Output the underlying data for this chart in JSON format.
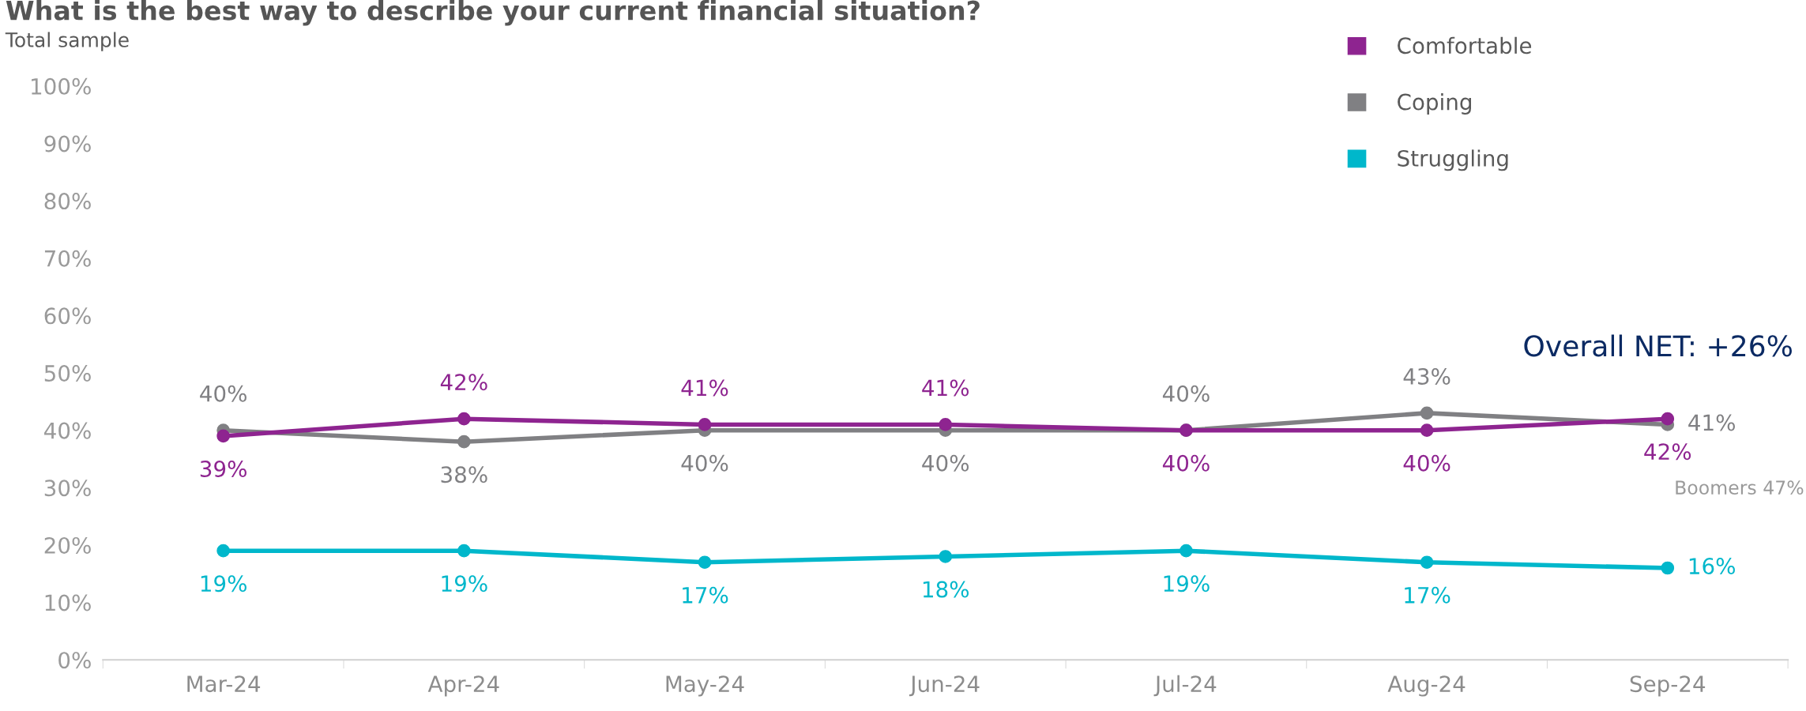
{
  "chart_data": {
    "type": "line",
    "title": "What is the best way to describe your current financial situation?",
    "subtitle": "Total sample",
    "categories": [
      "Mar-24",
      "Apr-24",
      "May-24",
      "Jun-24",
      "Jul-24",
      "Aug-24",
      "Sep-24"
    ],
    "series": [
      {
        "name": "Comfortable",
        "color": "#8e2490",
        "values": [
          39,
          42,
          41,
          41,
          40,
          40,
          42
        ],
        "value_labels": [
          "39%",
          "42%",
          "41%",
          "41%",
          "40%",
          "40%",
          "42%"
        ]
      },
      {
        "name": "Coping",
        "color": "#808083",
        "values": [
          40,
          38,
          40,
          40,
          40,
          43,
          41
        ],
        "value_labels": [
          "40%",
          "38%",
          "40%",
          "40%",
          "40%",
          "43%",
          "41%"
        ]
      },
      {
        "name": "Struggling",
        "color": "#00b7cb",
        "values": [
          19,
          19,
          17,
          18,
          19,
          17,
          16
        ],
        "value_labels": [
          "19%",
          "19%",
          "17%",
          "18%",
          "19%",
          "17%",
          "16%"
        ]
      }
    ],
    "ylim": [
      0,
      100
    ],
    "yticks": [
      {
        "value": 0,
        "label": "0%"
      },
      {
        "value": 10,
        "label": "10%"
      },
      {
        "value": 20,
        "label": "20%"
      },
      {
        "value": 30,
        "label": "30%"
      },
      {
        "value": 40,
        "label": "40%"
      },
      {
        "value": 50,
        "label": "50%"
      },
      {
        "value": 60,
        "label": "60%"
      },
      {
        "value": 70,
        "label": "70%"
      },
      {
        "value": 80,
        "label": "80%"
      },
      {
        "value": 90,
        "label": "90%"
      },
      {
        "value": 100,
        "label": "100%"
      }
    ],
    "marker": "circle",
    "line_style": "solid",
    "grid": false,
    "legend": "top right",
    "annotations": [
      "Overall NET: +26%",
      "Boomers 47%"
    ]
  }
}
